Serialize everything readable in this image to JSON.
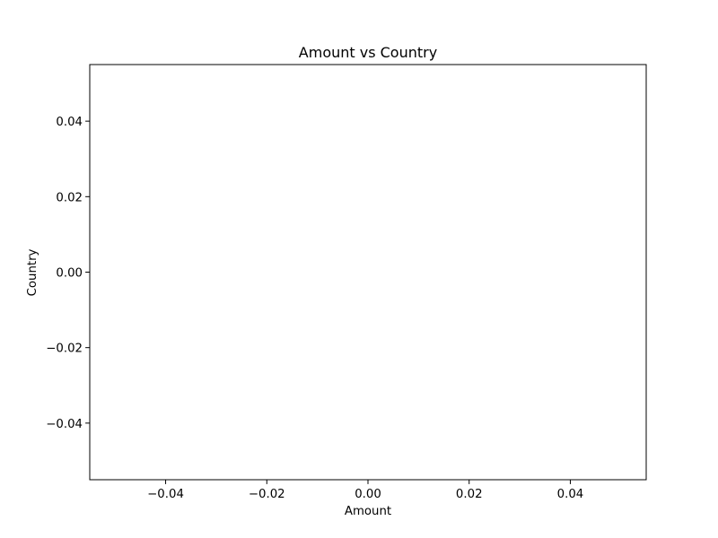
{
  "chart_data": {
    "type": "scatter",
    "title": "Amount vs Country",
    "xlabel": "Amount",
    "ylabel": "Country",
    "xlim": [
      -0.055,
      0.055
    ],
    "ylim": [
      -0.055,
      0.055
    ],
    "x_ticks": [
      -0.04,
      -0.02,
      0.0,
      0.02,
      0.04
    ],
    "y_ticks": [
      -0.04,
      -0.02,
      0.0,
      0.02,
      0.04
    ],
    "x_tick_labels": [
      "−0.04",
      "−0.02",
      "0.00",
      "0.02",
      "0.04"
    ],
    "y_tick_labels": [
      "−0.04",
      "−0.02",
      "0.00",
      "0.02",
      "0.04"
    ],
    "series": [],
    "grid": false,
    "legend": "none"
  },
  "colors": {
    "axes": "#000000",
    "background": "#ffffff"
  }
}
